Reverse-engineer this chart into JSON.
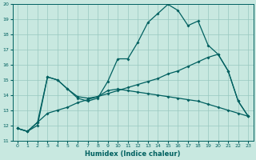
{
  "xlabel": "Humidex (Indice chaleur)",
  "xlim": [
    -0.5,
    23.5
  ],
  "ylim": [
    11,
    20
  ],
  "yticks": [
    11,
    12,
    13,
    14,
    15,
    16,
    17,
    18,
    19,
    20
  ],
  "xticks": [
    0,
    1,
    2,
    3,
    4,
    5,
    6,
    7,
    8,
    9,
    10,
    11,
    12,
    13,
    14,
    15,
    16,
    17,
    18,
    19,
    20,
    21,
    22,
    23
  ],
  "bg_color": "#c8e8e0",
  "line_color": "#006060",
  "grid_color": "#98c8c0",
  "line1_x": [
    0,
    1,
    2,
    3,
    4,
    5,
    6,
    7,
    8,
    9,
    10,
    11,
    12,
    13,
    14,
    15,
    16,
    17,
    18,
    19,
    20,
    21,
    22,
    23
  ],
  "line1_y": [
    11.8,
    11.6,
    12.0,
    15.2,
    15.0,
    14.4,
    13.8,
    13.6,
    13.8,
    14.9,
    16.4,
    16.4,
    17.5,
    18.8,
    19.4,
    20.0,
    19.6,
    18.6,
    18.9,
    17.3,
    16.7,
    15.6,
    13.6,
    12.6
  ],
  "line2_x": [
    0,
    1,
    2,
    3,
    4,
    5,
    6,
    7,
    8,
    9,
    10,
    11,
    12,
    13,
    14,
    15,
    16,
    17,
    18,
    19,
    20,
    21,
    22,
    23
  ],
  "line2_y": [
    11.8,
    11.6,
    12.2,
    15.2,
    15.0,
    14.4,
    13.9,
    13.8,
    13.9,
    14.3,
    14.4,
    14.3,
    14.2,
    14.1,
    14.0,
    13.9,
    13.8,
    13.7,
    13.6,
    13.4,
    13.2,
    13.0,
    12.8,
    12.6
  ],
  "line3_x": [
    0,
    1,
    2,
    3,
    4,
    5,
    6,
    7,
    8,
    9,
    10,
    11,
    12,
    13,
    14,
    15,
    16,
    17,
    18,
    19,
    20,
    21,
    22,
    23
  ],
  "line3_y": [
    11.8,
    11.6,
    12.2,
    12.8,
    13.0,
    13.2,
    13.5,
    13.7,
    13.9,
    14.1,
    14.3,
    14.5,
    14.7,
    14.9,
    15.1,
    15.4,
    15.6,
    15.9,
    16.2,
    16.5,
    16.7,
    15.6,
    13.6,
    12.6
  ]
}
